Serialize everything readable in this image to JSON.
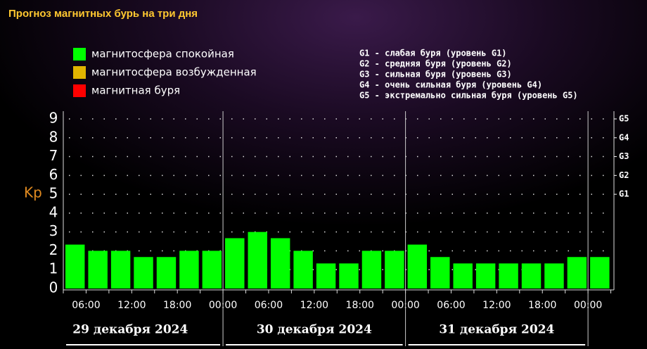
{
  "title": "Прогноз магнитных бурь на три дня",
  "legend": [
    {
      "label": "магнитосфера спокойная",
      "color": "#00ff00"
    },
    {
      "label": "магнитосфера возбужденная",
      "color": "#e0b400"
    },
    {
      "label": "магнитная буря",
      "color": "#ff0000"
    }
  ],
  "g_scale": [
    "G1 - слабая буря (уровень G1)",
    "G2 - средняя буря (уровень G2)",
    "G3 - сильная буря (уровень G3)",
    "G4 - очень сильная буря (уровень G4)",
    "G5 - экстремально сильная буря (уровень G5)"
  ],
  "chart_data": {
    "type": "bar",
    "y_label": "Kp",
    "values": [
      2.33,
      2,
      2,
      1.67,
      1.67,
      2,
      2,
      2.67,
      3,
      2.67,
      2,
      1.33,
      1.33,
      2,
      2,
      2.33,
      1.67,
      1.33,
      1.33,
      1.33,
      1.33,
      1.33,
      1.67,
      1.67
    ],
    "color": "#00ff00",
    "ylim": [
      0,
      9
    ],
    "yticks": [
      0,
      1,
      2,
      3,
      4,
      5,
      6,
      7,
      8,
      9
    ],
    "y2ticks": [
      {
        "value": 5,
        "label": "G1"
      },
      {
        "value": 6,
        "label": "G2"
      },
      {
        "value": 7,
        "label": "G3"
      },
      {
        "value": 8,
        "label": "G4"
      },
      {
        "value": 9,
        "label": "G5"
      }
    ],
    "xtick_labels": [
      "06:00",
      "12:00",
      "18:00",
      "00:00",
      "06:00",
      "12:00",
      "18:00",
      "00:00",
      "06:00",
      "12:00",
      "18:00",
      "00:00"
    ],
    "days": [
      "29 декабря 2024",
      "30 декабря 2024",
      "31 декабря 2024"
    ],
    "grid": true
  }
}
